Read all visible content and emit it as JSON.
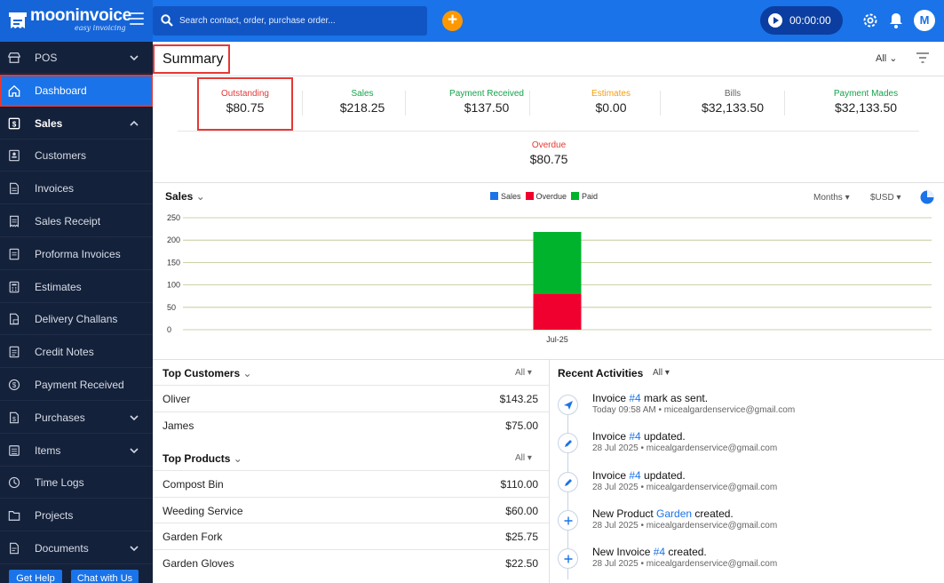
{
  "app": {
    "name": "mooninvoice",
    "tagline": "easy invoicing"
  },
  "header": {
    "search_placeholder": "Search contact, order, purchase order...",
    "timer": "00:00:00",
    "avatar_initial": "M"
  },
  "sidebar": {
    "items": [
      {
        "label": "POS",
        "icon": "store-icon",
        "chevron": "down"
      },
      {
        "label": "Dashboard",
        "icon": "home-icon",
        "active": true
      },
      {
        "label": "Sales",
        "icon": "dollar-doc-icon",
        "chevron": "up"
      },
      {
        "label": "Customers",
        "icon": "contact-icon"
      },
      {
        "label": "Invoices",
        "icon": "invoice-icon"
      },
      {
        "label": "Sales Receipt",
        "icon": "receipt-icon"
      },
      {
        "label": "Proforma Invoices",
        "icon": "proforma-icon"
      },
      {
        "label": "Estimates",
        "icon": "calculator-icon"
      },
      {
        "label": "Delivery Challans",
        "icon": "delivery-icon"
      },
      {
        "label": "Credit Notes",
        "icon": "credit-note-icon"
      },
      {
        "label": "Payment Received",
        "icon": "payment-icon"
      },
      {
        "label": "Purchases",
        "icon": "purchase-icon",
        "chevron": "down"
      },
      {
        "label": "Items",
        "icon": "items-icon",
        "chevron": "down"
      },
      {
        "label": "Time Logs",
        "icon": "clock-icon"
      },
      {
        "label": "Projects",
        "icon": "folder-icon"
      },
      {
        "label": "Documents",
        "icon": "document-icon",
        "chevron": "down"
      }
    ],
    "footer": {
      "help": "Get Help",
      "chat": "Chat with Us"
    }
  },
  "summary": {
    "title": "Summary",
    "filter": "All",
    "kpis": [
      {
        "label": "Outstanding",
        "value": "$80.75",
        "color": "#e53935"
      },
      {
        "label": "Sales",
        "value": "$218.25",
        "color": "#16a34a"
      },
      {
        "label": "Payment Received",
        "value": "$137.50",
        "color": "#16a34a"
      },
      {
        "label": "Estimates",
        "value": "$0.00",
        "color": "#f59e0b"
      },
      {
        "label": "Bills",
        "value": "$32,133.50",
        "color": "#666666"
      },
      {
        "label": "Payment Mades",
        "value": "$32,133.50",
        "color": "#16a34a"
      }
    ],
    "overdue": {
      "label": "Overdue",
      "value": "$80.75",
      "color": "#e53935"
    }
  },
  "sales_chart": {
    "title": "Sales",
    "period": "Months",
    "currency": "$USD",
    "legend": [
      {
        "name": "Sales",
        "color": "#1a73e8"
      },
      {
        "name": "Overdue",
        "color": "#f0002e"
      },
      {
        "name": "Paid",
        "color": "#00b32c"
      }
    ]
  },
  "chart_data": {
    "type": "bar",
    "stacked": true,
    "categories": [
      "Jul-25"
    ],
    "series": [
      {
        "name": "Overdue",
        "values": [
          80.75
        ]
      },
      {
        "name": "Paid",
        "values": [
          137.5
        ]
      }
    ],
    "yticks": [
      0,
      50,
      100,
      150,
      200,
      250
    ],
    "ylim": [
      0,
      250
    ],
    "grid": true,
    "legend_position": "top-center"
  },
  "top_customers": {
    "title": "Top Customers",
    "filter": "All",
    "rows": [
      {
        "name": "Oliver",
        "amount": "$143.25"
      },
      {
        "name": "James",
        "amount": "$75.00"
      }
    ]
  },
  "top_products": {
    "title": "Top Products",
    "filter": "All",
    "rows": [
      {
        "name": "Compost Bin",
        "amount": "$110.00"
      },
      {
        "name": "Weeding Service",
        "amount": "$60.00"
      },
      {
        "name": "Garden Fork",
        "amount": "$25.75"
      },
      {
        "name": "Garden Gloves",
        "amount": "$22.50"
      }
    ]
  },
  "recent_activities": {
    "title": "Recent Activities",
    "filter": "All",
    "items": [
      {
        "icon": "send-icon",
        "pre": "Invoice ",
        "link": "#4",
        "post": " mark as sent.",
        "meta": "Today 09:58 AM • micealgardenservice@gmail.com"
      },
      {
        "icon": "pencil-icon",
        "pre": "Invoice ",
        "link": "#4",
        "post": " updated.",
        "meta": "28 Jul 2025 • micealgardenservice@gmail.com"
      },
      {
        "icon": "pencil-icon",
        "pre": "Invoice ",
        "link": "#4",
        "post": " updated.",
        "meta": "28 Jul 2025 • micealgardenservice@gmail.com"
      },
      {
        "icon": "plus-icon",
        "pre": "New Product ",
        "link": "Garden",
        "post": " created.",
        "meta": "28 Jul 2025 • micealgardenservice@gmail.com"
      },
      {
        "icon": "plus-icon",
        "pre": "New Invoice ",
        "link": "#4",
        "post": " created.",
        "meta": "28 Jul 2025 • micealgardenservice@gmail.com"
      }
    ]
  }
}
